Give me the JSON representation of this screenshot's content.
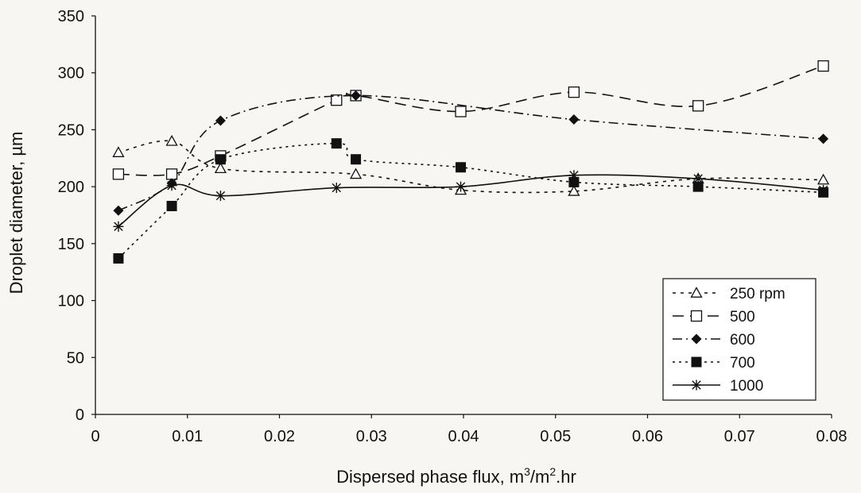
{
  "chart_data": {
    "type": "line",
    "xlabel_main": "Dispersed phase flux, m",
    "xlabel_sup1": "3",
    "xlabel_mid": "/m",
    "xlabel_sup2": "2",
    "xlabel_tail": ".hr",
    "ylabel": "Droplet diameter, µm",
    "xlim": [
      0,
      0.08
    ],
    "ylim": [
      0,
      350
    ],
    "xticks": [
      0,
      0.01,
      0.02,
      0.03,
      0.04,
      0.05,
      0.06,
      0.07,
      0.08
    ],
    "xtick_labels": [
      "0",
      "0.01",
      "0.02",
      "0.03",
      "0.04",
      "0.05",
      "0.06",
      "0.07",
      "0.08"
    ],
    "yticks": [
      0,
      50,
      100,
      150,
      200,
      250,
      300,
      350
    ],
    "ytick_labels": [
      "0",
      "50",
      "100",
      "150",
      "200",
      "250",
      "300",
      "350"
    ],
    "legend_position": "right",
    "series": [
      {
        "name": "250 rpm",
        "marker": "triangle-open",
        "dash": "4,6",
        "points": [
          [
            0.0025,
            230
          ],
          [
            0.0083,
            240
          ],
          [
            0.0136,
            216
          ],
          [
            0.0283,
            211
          ],
          [
            0.0397,
            197
          ],
          [
            0.052,
            196
          ],
          [
            0.0655,
            207
          ],
          [
            0.0791,
            206
          ]
        ]
      },
      {
        "name": "500",
        "marker": "square-open",
        "dash": "14,8",
        "points": [
          [
            0.0025,
            211
          ],
          [
            0.0083,
            211
          ],
          [
            0.0136,
            227
          ],
          [
            0.0262,
            276
          ],
          [
            0.0283,
            280
          ],
          [
            0.0397,
            266
          ],
          [
            0.052,
            283
          ],
          [
            0.0655,
            271
          ],
          [
            0.0791,
            306
          ]
        ]
      },
      {
        "name": "600",
        "marker": "diamond-filled",
        "dash": "12,5,2,5",
        "points": [
          [
            0.0025,
            179
          ],
          [
            0.0083,
            203
          ],
          [
            0.0136,
            258
          ],
          [
            0.0283,
            280
          ],
          [
            0.052,
            259
          ],
          [
            0.0791,
            242
          ]
        ]
      },
      {
        "name": "700",
        "marker": "square-filled",
        "dash": "3,5",
        "points": [
          [
            0.0025,
            137
          ],
          [
            0.0083,
            183
          ],
          [
            0.0136,
            224
          ],
          [
            0.0262,
            238
          ],
          [
            0.0283,
            224
          ],
          [
            0.0397,
            217
          ],
          [
            0.052,
            204
          ],
          [
            0.0655,
            200
          ],
          [
            0.0791,
            195
          ]
        ]
      },
      {
        "name": "1000",
        "marker": "star",
        "dash": "",
        "points": [
          [
            0.0025,
            165
          ],
          [
            0.0083,
            201
          ],
          [
            0.0136,
            192
          ],
          [
            0.0262,
            199
          ],
          [
            0.0397,
            200
          ],
          [
            0.052,
            210
          ],
          [
            0.0655,
            207
          ],
          [
            0.0791,
            197
          ]
        ]
      }
    ]
  }
}
